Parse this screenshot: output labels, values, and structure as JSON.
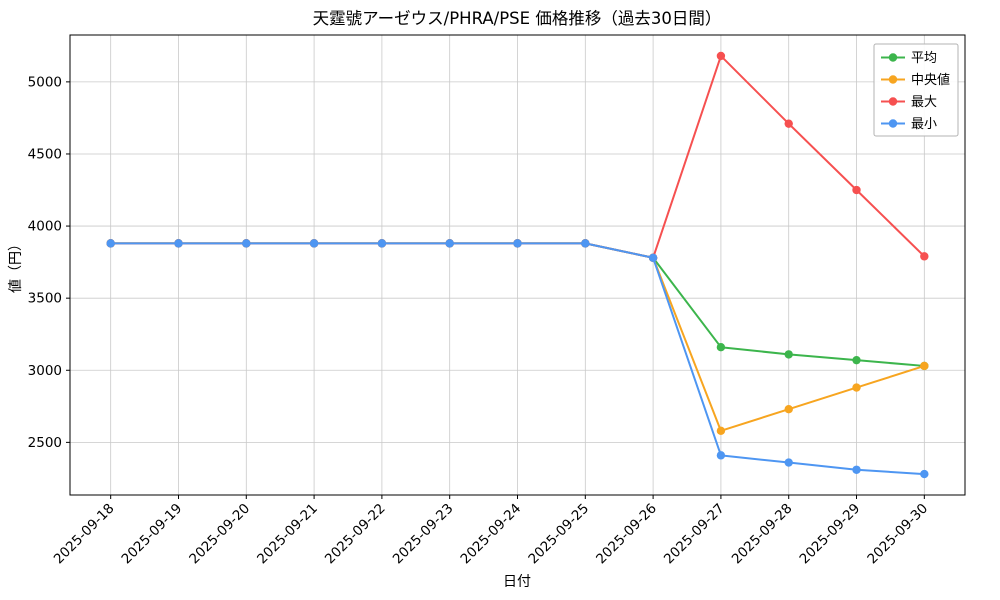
{
  "title": "天霆號アーゼウス/PHRA/PSE 価格推移（過去30日間）",
  "chart_data": {
    "type": "line",
    "title": "天霆號アーゼウス/PHRA/PSE 価格推移（過去30日間）",
    "xlabel": "日付",
    "ylabel": "値（円）",
    "x": [
      "2025-09-18",
      "2025-09-19",
      "2025-09-20",
      "2025-09-21",
      "2025-09-22",
      "2025-09-23",
      "2025-09-24",
      "2025-09-25",
      "2025-09-26",
      "2025-09-27",
      "2025-09-28",
      "2025-09-29",
      "2025-09-30"
    ],
    "series": [
      {
        "name": "平均",
        "color": "#3cb54c",
        "values": [
          3880,
          3880,
          3880,
          3880,
          3880,
          3880,
          3880,
          3880,
          3780,
          3160,
          3110,
          3070,
          3030
        ]
      },
      {
        "name": "中央値",
        "color": "#f7a520",
        "values": [
          3880,
          3880,
          3880,
          3880,
          3880,
          3880,
          3880,
          3880,
          3780,
          2580,
          2730,
          2880,
          3030
        ]
      },
      {
        "name": "最大",
        "color": "#f65050",
        "values": [
          3880,
          3880,
          3880,
          3880,
          3880,
          3880,
          3880,
          3880,
          3780,
          5180,
          4710,
          4250,
          3790
        ]
      },
      {
        "name": "最小",
        "color": "#4e96f2",
        "values": [
          3880,
          3880,
          3880,
          3880,
          3880,
          3880,
          3880,
          3880,
          3780,
          2410,
          2360,
          2310,
          2280
        ]
      }
    ],
    "ylim": [
      2135,
      5325
    ],
    "yticks": [
      2500,
      3000,
      3500,
      4000,
      4500,
      5000
    ],
    "grid": true,
    "grid_color": "#c9c9c9",
    "legend_position": "top-right"
  }
}
